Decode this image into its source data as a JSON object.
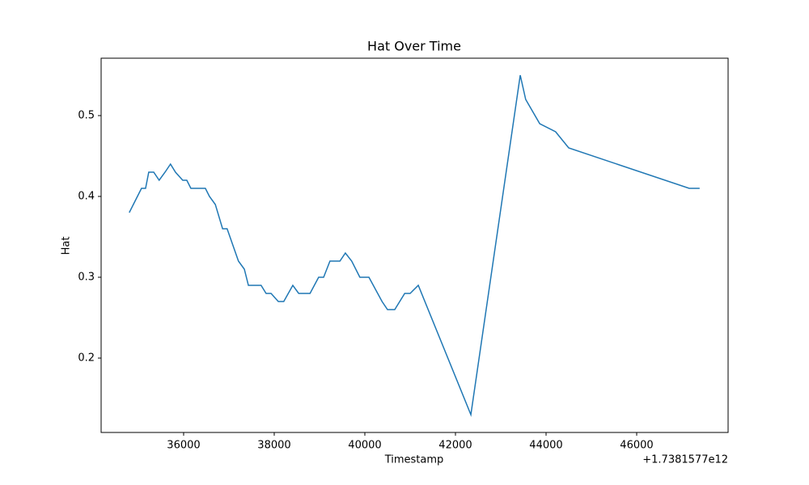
{
  "chart_data": {
    "type": "line",
    "title": "Hat Over Time",
    "x_label": "Timestamp",
    "y_label": "Hat",
    "x_offset_label": "+1.7381577e12",
    "x": [
      34800,
      34890,
      34980,
      35070,
      35160,
      35230,
      35340,
      35460,
      35590,
      35710,
      35820,
      35980,
      36070,
      36160,
      36480,
      36570,
      36700,
      36860,
      36960,
      37210,
      37340,
      37430,
      37710,
      37820,
      37930,
      38090,
      38210,
      38410,
      38540,
      38790,
      38980,
      39090,
      39230,
      39450,
      39570,
      39710,
      39890,
      40090,
      40380,
      40500,
      40660,
      40880,
      41000,
      41180,
      42340,
      43430,
      43550,
      43860,
      44210,
      44500,
      47160,
      47390
    ],
    "series": [
      {
        "name": "Hat",
        "color": "#1f77b4",
        "values": [
          0.38,
          0.39,
          0.4,
          0.41,
          0.41,
          0.43,
          0.43,
          0.42,
          0.43,
          0.44,
          0.43,
          0.42,
          0.42,
          0.41,
          0.41,
          0.4,
          0.39,
          0.36,
          0.36,
          0.32,
          0.31,
          0.29,
          0.29,
          0.28,
          0.28,
          0.27,
          0.27,
          0.29,
          0.28,
          0.28,
          0.3,
          0.3,
          0.32,
          0.32,
          0.33,
          0.32,
          0.3,
          0.3,
          0.27,
          0.26,
          0.26,
          0.28,
          0.28,
          0.29,
          0.13,
          0.55,
          0.52,
          0.49,
          0.48,
          0.46,
          0.41,
          0.41
        ]
      }
    ],
    "xlim": [
      34179,
      48018
    ],
    "ylim": [
      0.108,
      0.571
    ],
    "xticks": [
      36000,
      38000,
      40000,
      42000,
      44000,
      46000
    ],
    "yticks": [
      0.2,
      0.3,
      0.4,
      0.5
    ],
    "grid": false
  }
}
